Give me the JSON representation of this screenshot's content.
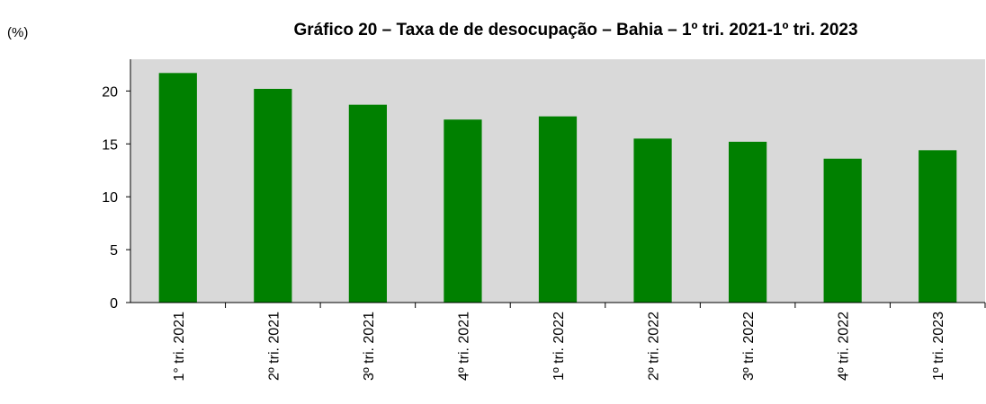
{
  "chart_data": {
    "type": "bar",
    "title": "Gráfico 20 – Taxa de de desocupação – Bahia – 1º tri. 2021-1º tri. 2023",
    "y_label": "(%)",
    "categories": [
      "1° tri. 2021",
      "2º tri. 2021",
      "3º tri. 2021",
      "4º tri. 2021",
      "1º tri. 2022",
      "2º tri. 2022",
      "3º tri. 2022",
      "4º tri. 2022",
      "1º tri. 2023"
    ],
    "values": [
      21.7,
      20.2,
      18.7,
      17.3,
      17.6,
      15.5,
      15.2,
      13.6,
      14.4
    ],
    "color": "#008000",
    "plot_background": "#d9d9d9",
    "ylim": [
      0,
      23
    ],
    "yticks": [
      0,
      5,
      10,
      15,
      20
    ],
    "grid": false
  }
}
